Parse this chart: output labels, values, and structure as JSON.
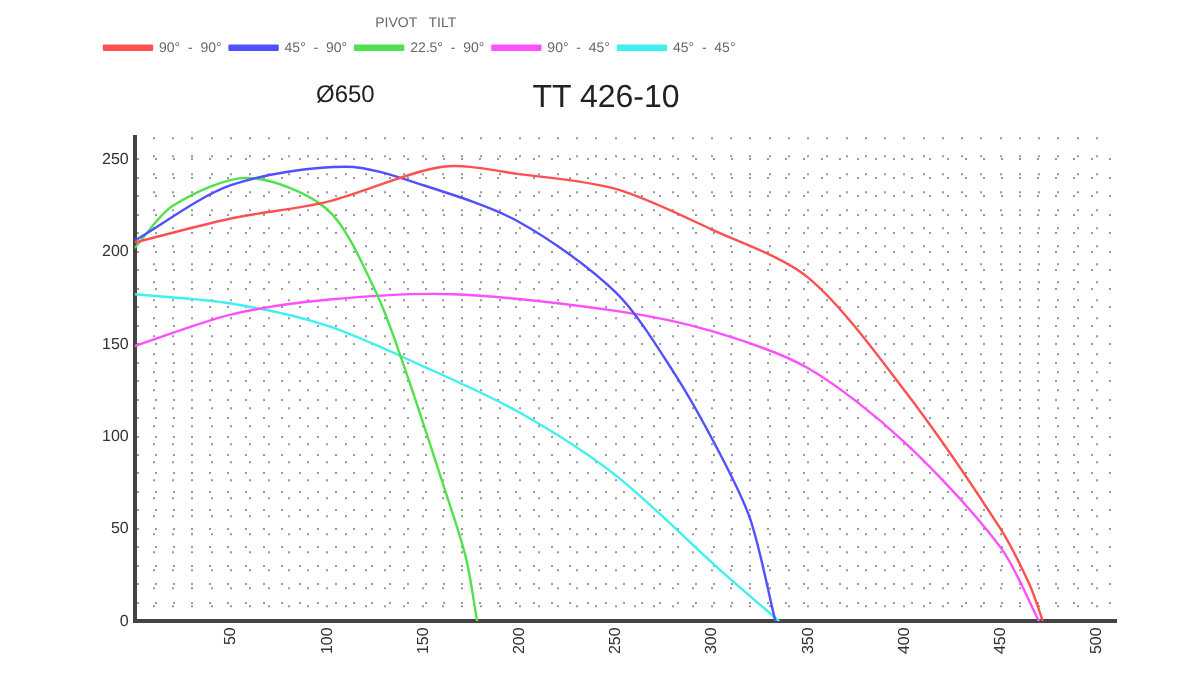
{
  "chart_data": {
    "type": "line",
    "title": "TT 426-10",
    "annotations": [
      "Ø650"
    ],
    "legend_title": "PIVOT   TILT",
    "legend": "top left",
    "grid": true,
    "marker": "none",
    "xlim": [
      0,
      510
    ],
    "ylim": [
      0,
      262
    ],
    "xticks": [
      {
        "value": 0,
        "label": null
      },
      {
        "value": 10,
        "label": null
      },
      {
        "value": 20,
        "label": null
      },
      {
        "value": 30,
        "label": null
      },
      {
        "value": 40,
        "label": null
      },
      50,
      {
        "value": 60,
        "label": null
      },
      {
        "value": 70,
        "label": null
      },
      {
        "value": 80,
        "label": null
      },
      {
        "value": 90,
        "label": null
      },
      100,
      {
        "value": 110,
        "label": null
      },
      {
        "value": 120,
        "label": null
      },
      {
        "value": 130,
        "label": null
      },
      {
        "value": 140,
        "label": null
      },
      150,
      {
        "value": 160,
        "label": null
      },
      {
        "value": 170,
        "label": null
      },
      {
        "value": 180,
        "label": null
      },
      {
        "value": 190,
        "label": null
      },
      200,
      {
        "value": 210,
        "label": null
      },
      {
        "value": 220,
        "label": null
      },
      {
        "value": 230,
        "label": null
      },
      {
        "value": 240,
        "label": null
      },
      250,
      {
        "value": 260,
        "label": null
      },
      {
        "value": 270,
        "label": null
      },
      {
        "value": 280,
        "label": null
      },
      {
        "value": 290,
        "label": null
      },
      300,
      {
        "value": 310,
        "label": null
      },
      {
        "value": 320,
        "label": null
      },
      {
        "value": 330,
        "label": null
      },
      {
        "value": 340,
        "label": null
      },
      350,
      {
        "value": 360,
        "label": null
      },
      {
        "value": 370,
        "label": null
      },
      {
        "value": 380,
        "label": null
      },
      {
        "value": 390,
        "label": null
      },
      400,
      {
        "value": 410,
        "label": null
      },
      {
        "value": 420,
        "label": null
      },
      {
        "value": 430,
        "label": null
      },
      {
        "value": 440,
        "label": null
      },
      450,
      {
        "value": 460,
        "label": null
      },
      {
        "value": 470,
        "label": null
      },
      {
        "value": 480,
        "label": null
      },
      {
        "value": 490,
        "label": null
      },
      500
    ],
    "yticks": [
      0,
      {
        "value": 10,
        "label": null
      },
      {
        "value": 20,
        "label": null
      },
      {
        "value": 30,
        "label": null
      },
      {
        "value": 40,
        "label": null
      },
      50,
      {
        "value": 60,
        "label": null
      },
      {
        "value": 70,
        "label": null
      },
      {
        "value": 80,
        "label": null
      },
      {
        "value": 90,
        "label": null
      },
      100,
      {
        "value": 110,
        "label": null
      },
      {
        "value": 120,
        "label": null
      },
      {
        "value": 130,
        "label": null
      },
      {
        "value": 140,
        "label": null
      },
      150,
      {
        "value": 160,
        "label": null
      },
      {
        "value": 170,
        "label": null
      },
      {
        "value": 180,
        "label": null
      },
      {
        "value": 190,
        "label": null
      },
      200,
      {
        "value": 210,
        "label": null
      },
      {
        "value": 220,
        "label": null
      },
      {
        "value": 230,
        "label": null
      },
      {
        "value": 240,
        "label": null
      },
      250
    ],
    "series": [
      {
        "name": "90°  -  90°",
        "color": "#ff5050",
        "x": [
          0,
          50,
          100,
          160,
          200,
          250,
          300,
          350,
          400,
          450,
          465,
          472
        ],
        "values": [
          205,
          218,
          227,
          246,
          242,
          234,
          212,
          186,
          125,
          50,
          20,
          0
        ]
      },
      {
        "name": "45°  -  90°",
        "color": "#5050ff",
        "x": [
          0,
          50,
          110,
          150,
          200,
          250,
          280,
          304,
          320,
          333
        ],
        "values": [
          206,
          236,
          246,
          236,
          216,
          178,
          135,
          91,
          55,
          0
        ]
      },
      {
        "name": "22.5°  -  90°",
        "color": "#50e050",
        "x": [
          0,
          20,
          59,
          100,
          125,
          140,
          160,
          172,
          178
        ],
        "values": [
          202,
          225,
          240,
          223,
          179,
          138,
          75,
          35,
          0
        ]
      },
      {
        "name": "90°  -  45°",
        "color": "#ff50ff",
        "x": [
          0,
          50,
          100,
          165,
          250,
          300,
          350,
          400,
          450,
          470
        ],
        "values": [
          149,
          166,
          174,
          177,
          168,
          157,
          137,
          97,
          40,
          0
        ]
      },
      {
        "name": "45°  -  45°",
        "color": "#40f0f0",
        "x": [
          0,
          50,
          100,
          150,
          200,
          250,
          304,
          335
        ],
        "values": [
          177,
          172,
          160,
          138,
          113,
          79,
          28,
          0
        ]
      }
    ]
  }
}
